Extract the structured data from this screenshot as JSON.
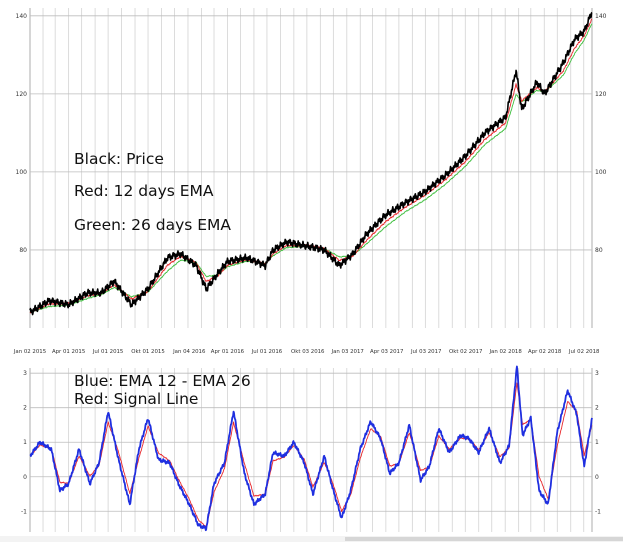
{
  "chart_data": [
    {
      "type": "line",
      "title": "",
      "xlabel": "",
      "ylabel": "",
      "ylim": [
        60,
        142
      ],
      "y_ticks": [
        80,
        100,
        120,
        140
      ],
      "x_ticks": [
        "Jan 02 2015",
        "Apr 01 2015",
        "Jul 01 2015",
        "Okt 01 2015",
        "Jan 04 2016",
        "Apr 01 2016",
        "Jul 01 2016",
        "Okt 03 2016",
        "Jan 03 2017",
        "Apr 03 2017",
        "Jul 03 2017",
        "Okt 02 2017",
        "Jan 02 2018",
        "Apr 02 2018",
        "Jul 02 2018"
      ],
      "grid": true,
      "legend_text": [
        "Black: Price",
        "Red: 12 days EMA",
        "Green: 26 days EMA"
      ],
      "series": [
        {
          "name": "Price",
          "color": "#000000",
          "x": [
            "2015-01-02",
            "2015-02-15",
            "2015-04-01",
            "2015-05-15",
            "2015-06-15",
            "2015-07-15",
            "2015-08-24",
            "2015-10-01",
            "2015-11-15",
            "2015-12-15",
            "2016-01-20",
            "2016-02-12",
            "2016-03-10",
            "2016-04-01",
            "2016-05-15",
            "2016-06-27",
            "2016-07-15",
            "2016-08-15",
            "2016-10-01",
            "2016-11-10",
            "2016-12-15",
            "2017-01-15",
            "2017-02-15",
            "2017-04-01",
            "2017-05-15",
            "2017-07-01",
            "2017-08-15",
            "2017-10-01",
            "2017-11-15",
            "2018-01-02",
            "2018-01-26",
            "2018-02-08",
            "2018-03-15",
            "2018-04-02",
            "2018-05-15",
            "2018-06-10",
            "2018-07-02",
            "2018-07-20"
          ],
          "values": [
            64,
            67,
            66,
            69,
            69,
            72,
            66,
            70,
            78,
            79,
            76,
            70,
            74,
            77,
            78,
            76,
            80,
            82,
            81,
            80,
            76,
            79,
            84,
            89,
            92,
            95,
            99,
            104,
            110,
            114,
            126,
            116,
            123,
            120,
            128,
            134,
            136,
            141
          ]
        },
        {
          "name": "12 days EMA",
          "color": "#e8262a",
          "x": [
            "2015-01-02",
            "2015-02-15",
            "2015-04-01",
            "2015-05-15",
            "2015-06-15",
            "2015-07-15",
            "2015-08-24",
            "2015-10-01",
            "2015-11-15",
            "2015-12-15",
            "2016-01-20",
            "2016-02-12",
            "2016-03-10",
            "2016-04-01",
            "2016-05-15",
            "2016-06-27",
            "2016-07-15",
            "2016-08-15",
            "2016-10-01",
            "2016-11-10",
            "2016-12-15",
            "2017-01-15",
            "2017-02-15",
            "2017-04-01",
            "2017-05-15",
            "2017-07-01",
            "2017-08-15",
            "2017-10-01",
            "2017-11-15",
            "2018-01-02",
            "2018-01-26",
            "2018-02-08",
            "2018-03-15",
            "2018-04-02",
            "2018-05-15",
            "2018-06-10",
            "2018-07-02",
            "2018-07-20"
          ],
          "values": [
            64,
            66.2,
            66.3,
            68.3,
            68.9,
            71.1,
            67.4,
            69.4,
            76.1,
            78.4,
            76.7,
            71.9,
            73.4,
            76.1,
            77.6,
            76.4,
            79,
            81.2,
            81.2,
            80.3,
            77.3,
            78.5,
            82.4,
            87.3,
            90.9,
            94.1,
            97.9,
            102.6,
            108.3,
            112.6,
            122.4,
            118.2,
            121.6,
            120.5,
            125.9,
            131.7,
            134.9,
            139.2
          ]
        },
        {
          "name": "26 days EMA",
          "color": "#3fbf3f",
          "x": [
            "2015-01-02",
            "2015-02-15",
            "2015-04-01",
            "2015-05-15",
            "2015-06-15",
            "2015-07-15",
            "2015-08-24",
            "2015-10-01",
            "2015-11-15",
            "2015-12-15",
            "2016-01-20",
            "2016-02-12",
            "2016-03-10",
            "2016-04-01",
            "2016-05-15",
            "2016-06-27",
            "2016-07-15",
            "2016-08-15",
            "2016-10-01",
            "2016-11-10",
            "2016-12-15",
            "2017-01-15",
            "2017-02-15",
            "2017-04-01",
            "2017-05-15",
            "2017-07-01",
            "2017-08-15",
            "2017-10-01",
            "2017-11-15",
            "2018-01-02",
            "2018-01-26",
            "2018-02-08",
            "2018-03-15",
            "2018-04-02",
            "2018-05-15",
            "2018-06-10",
            "2018-07-02",
            "2018-07-20"
          ],
          "values": [
            64,
            65.5,
            65.8,
            67.6,
            68.5,
            70.4,
            68,
            69.2,
            74.6,
            77.4,
            76.8,
            73.2,
            73.6,
            75.7,
            77.1,
            76.6,
            78.5,
            80.6,
            80.9,
            80.4,
            78.2,
            78.6,
            81.5,
            86,
            89.7,
            92.9,
            96.7,
            101.4,
            107,
            111.1,
            119.9,
            117.9,
            120.9,
            120.4,
            124.8,
            130.3,
            133.8,
            138.1
          ]
        }
      ]
    },
    {
      "type": "line",
      "title": "",
      "xlabel": "",
      "ylabel": "",
      "ylim": [
        -1.6,
        3.15
      ],
      "y_ticks": [
        -1,
        0,
        1,
        2,
        3
      ],
      "grid": true,
      "legend_text": [
        "Blue: EMA 12 - EMA 26",
        "Red: Signal Line"
      ],
      "series": [
        {
          "name": "EMA 12 - EMA 26",
          "color": "#1f2fe0",
          "x": [
            "2015-01-02",
            "2015-01-25",
            "2015-02-20",
            "2015-03-12",
            "2015-04-01",
            "2015-04-25",
            "2015-05-20",
            "2015-06-10",
            "2015-07-01",
            "2015-07-25",
            "2015-08-20",
            "2015-09-10",
            "2015-10-01",
            "2015-10-25",
            "2015-11-20",
            "2015-12-10",
            "2016-01-04",
            "2016-01-25",
            "2016-02-12",
            "2016-03-01",
            "2016-03-25",
            "2016-04-15",
            "2016-05-10",
            "2016-06-01",
            "2016-06-27",
            "2016-07-15",
            "2016-08-10",
            "2016-09-01",
            "2016-09-25",
            "2016-10-15",
            "2016-11-10",
            "2016-12-01",
            "2016-12-20",
            "2017-01-10",
            "2017-02-01",
            "2017-02-25",
            "2017-03-20",
            "2017-04-10",
            "2017-05-01",
            "2017-05-25",
            "2017-06-20",
            "2017-07-10",
            "2017-08-01",
            "2017-08-25",
            "2017-09-20",
            "2017-10-10",
            "2017-11-01",
            "2017-11-25",
            "2017-12-20",
            "2018-01-10",
            "2018-01-28",
            "2018-02-10",
            "2018-03-01",
            "2018-03-20",
            "2018-04-10",
            "2018-05-01",
            "2018-05-25",
            "2018-06-15",
            "2018-07-02",
            "2018-07-20"
          ],
          "values": [
            0.6,
            1.0,
            0.8,
            -0.4,
            -0.2,
            0.8,
            -0.2,
            0.4,
            1.9,
            0.5,
            -0.8,
            0.8,
            1.7,
            0.5,
            0.4,
            -0.2,
            -0.8,
            -1.4,
            -1.5,
            -0.2,
            0.4,
            1.9,
            0.1,
            -0.8,
            -0.5,
            0.7,
            0.6,
            1.0,
            0.4,
            -0.5,
            0.6,
            -0.4,
            -1.2,
            -0.4,
            0.8,
            1.6,
            1.1,
            0.1,
            0.4,
            1.5,
            -0.1,
            0.3,
            1.4,
            0.7,
            1.2,
            1.1,
            0.7,
            1.4,
            0.4,
            0.9,
            3.2,
            1.2,
            1.7,
            -0.4,
            -0.8,
            1.3,
            2.5,
            1.8,
            0.3,
            1.7
          ]
        },
        {
          "name": "Signal Line",
          "color": "#e8262a",
          "x": [
            "2015-01-02",
            "2015-01-25",
            "2015-02-20",
            "2015-03-12",
            "2015-04-01",
            "2015-04-25",
            "2015-05-20",
            "2015-06-10",
            "2015-07-01",
            "2015-07-25",
            "2015-08-20",
            "2015-09-10",
            "2015-10-01",
            "2015-10-25",
            "2015-11-20",
            "2015-12-10",
            "2016-01-04",
            "2016-01-25",
            "2016-02-12",
            "2016-03-01",
            "2016-03-25",
            "2016-04-15",
            "2016-05-10",
            "2016-06-01",
            "2016-06-27",
            "2016-07-15",
            "2016-08-10",
            "2016-09-01",
            "2016-09-25",
            "2016-10-15",
            "2016-11-10",
            "2016-12-01",
            "2016-12-20",
            "2017-01-10",
            "2017-02-01",
            "2017-02-25",
            "2017-03-20",
            "2017-04-10",
            "2017-05-01",
            "2017-05-25",
            "2017-06-20",
            "2017-07-10",
            "2017-08-01",
            "2017-08-25",
            "2017-09-20",
            "2017-10-10",
            "2017-11-01",
            "2017-11-25",
            "2017-12-20",
            "2018-01-10",
            "2018-01-28",
            "2018-02-10",
            "2018-03-01",
            "2018-03-20",
            "2018-04-10",
            "2018-05-01",
            "2018-05-25",
            "2018-06-15",
            "2018-07-02",
            "2018-07-20"
          ],
          "values": [
            0.6,
            0.92,
            0.82,
            -0.16,
            -0.19,
            0.6,
            0.02,
            0.32,
            1.58,
            0.72,
            -0.49,
            0.54,
            1.47,
            0.69,
            0.46,
            -0.07,
            -0.65,
            -1.25,
            -1.45,
            -0.45,
            0.23,
            1.57,
            0.39,
            -0.56,
            -0.51,
            0.46,
            0.57,
            0.91,
            0.5,
            -0.3,
            0.42,
            -0.23,
            -1.0,
            -0.52,
            0.54,
            1.39,
            1.16,
            0.31,
            0.38,
            1.28,
            0.18,
            0.28,
            1.18,
            0.8,
            1.12,
            1.1,
            0.78,
            1.28,
            0.58,
            0.84,
            2.73,
            1.51,
            1.66,
            0.01,
            -0.64,
            0.9,
            2.18,
            1.88,
            0.62,
            1.5
          ]
        }
      ]
    }
  ]
}
